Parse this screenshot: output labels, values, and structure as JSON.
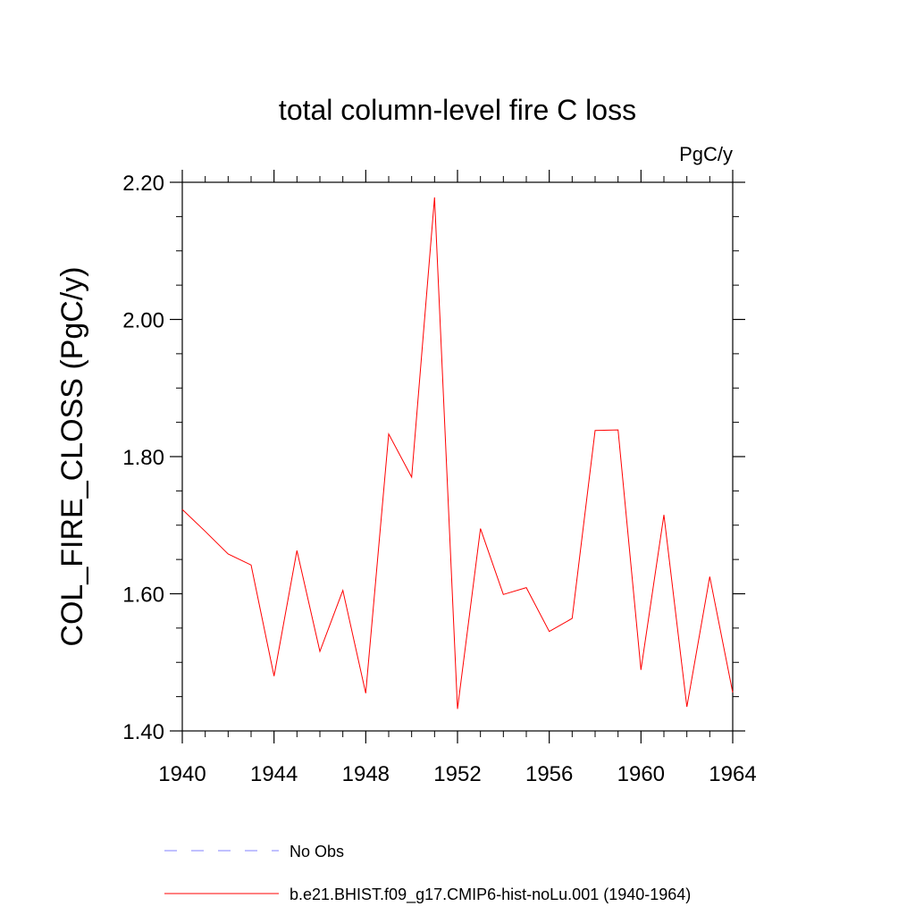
{
  "chart_data": {
    "type": "line",
    "title": "total column-level fire C loss",
    "units_label": "PgC/y",
    "xlabel": "",
    "ylabel": "COL_FIRE_CLOSS  (PgC/y)",
    "xlim": [
      1940,
      1964
    ],
    "ylim": [
      1.4,
      2.2
    ],
    "x_ticks": [
      1940,
      1944,
      1948,
      1952,
      1956,
      1960,
      1964
    ],
    "y_ticks": [
      1.4,
      1.6,
      1.8,
      2.0,
      2.2
    ],
    "x_tick_labels": [
      "1940",
      "1944",
      "1948",
      "1952",
      "1956",
      "1960",
      "1964"
    ],
    "y_tick_labels": [
      "1.40",
      "1.60",
      "1.80",
      "2.00",
      "2.20"
    ],
    "grid": false,
    "legend_position": "bottom",
    "series": [
      {
        "name": "No Obs",
        "color": "#8080ff",
        "dash": "dashed",
        "x": [],
        "y": []
      },
      {
        "name": "b.e21.BHIST.f09_g17.CMIP6-hist-noLu.001 (1940-1964)",
        "color": "#ff0000",
        "dash": "solid",
        "x": [
          1940,
          1941,
          1942,
          1943,
          1944,
          1945,
          1946,
          1947,
          1948,
          1949,
          1950,
          1951,
          1952,
          1953,
          1954,
          1955,
          1956,
          1957,
          1958,
          1959,
          1960,
          1961,
          1962,
          1963,
          1964
        ],
        "y": [
          1.723,
          1.691,
          1.658,
          1.642,
          1.48,
          1.663,
          1.516,
          1.605,
          1.455,
          1.833,
          1.77,
          2.178,
          1.432,
          1.695,
          1.599,
          1.609,
          1.545,
          1.564,
          1.838,
          1.839,
          1.489,
          1.715,
          1.435,
          1.625,
          1.456
        ]
      }
    ]
  }
}
